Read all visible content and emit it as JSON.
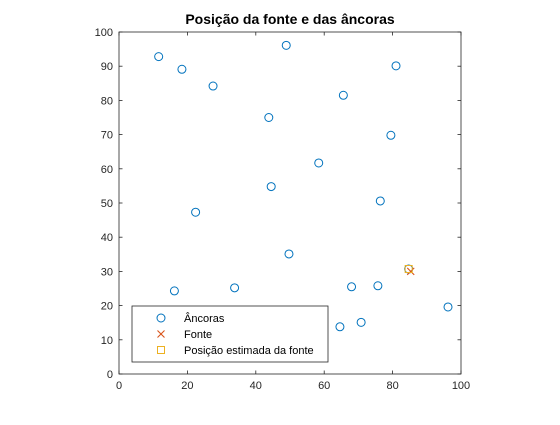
{
  "chart_data": {
    "type": "scatter",
    "title": "Posição da fonte e das âncoras",
    "xlabel": "",
    "ylabel": "",
    "xlim": [
      0,
      100
    ],
    "ylim": [
      0,
      100
    ],
    "xticks": [
      0,
      20,
      40,
      60,
      80,
      100
    ],
    "yticks": [
      0,
      10,
      20,
      30,
      40,
      50,
      60,
      70,
      80,
      90,
      100
    ],
    "grid": false,
    "legend_position": "bottom-left",
    "series": [
      {
        "name": "Âncoras",
        "marker": "circle",
        "color": "#0072BD",
        "points": [
          [
            11.6,
            92.8
          ],
          [
            18.4,
            89.1
          ],
          [
            27.5,
            84.2
          ],
          [
            48.9,
            96.1
          ],
          [
            81.0,
            90.1
          ],
          [
            65.6,
            81.5
          ],
          [
            43.8,
            75.0
          ],
          [
            79.5,
            69.8
          ],
          [
            58.4,
            61.7
          ],
          [
            44.5,
            54.8
          ],
          [
            76.4,
            50.6
          ],
          [
            22.4,
            47.3
          ],
          [
            49.7,
            35.1
          ],
          [
            84.7,
            30.7
          ],
          [
            68.0,
            25.5
          ],
          [
            75.7,
            25.8
          ],
          [
            33.8,
            25.2
          ],
          [
            16.2,
            24.3
          ],
          [
            64.6,
            13.8
          ],
          [
            70.8,
            15.1
          ],
          [
            96.2,
            19.6
          ]
        ]
      },
      {
        "name": "Fonte",
        "marker": "x",
        "color": "#D95319",
        "points": [
          [
            85.3,
            30.0
          ]
        ]
      },
      {
        "name": "Posição estimada da fonte",
        "marker": "square",
        "color": "#EDB120",
        "points": [
          [
            84.7,
            30.7
          ]
        ]
      }
    ]
  }
}
